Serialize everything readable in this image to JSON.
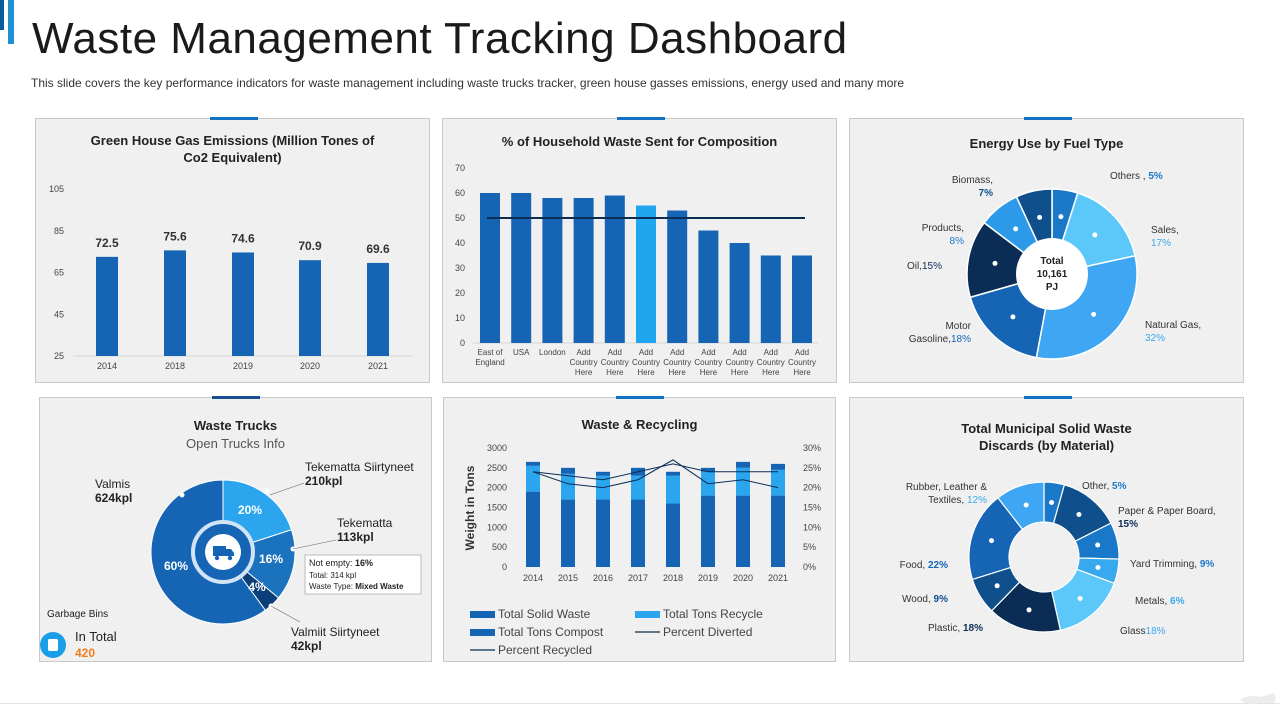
{
  "header": {
    "title": "Waste Management Tracking Dashboard",
    "subtitle": "This slide covers the key performance indicators for waste management including waste trucks tracker, green house gasses emissions, energy used and many more"
  },
  "colors": {
    "dark": "#0b2d55",
    "navy": "#0a3f7a",
    "mid": "#1565b4",
    "blue": "#1a78c9",
    "light": "#38a9ef",
    "sky": "#5cc8fa",
    "accent_orange": "#f07c1c"
  },
  "panels": {
    "ghg": {
      "title1": "Green House Gas Emissions (Million Tones of",
      "title2": "Co2 Equivalent)"
    },
    "household": {
      "title": "% of Household Waste Sent for Composition"
    },
    "energy": {
      "title": "Energy Use by Fuel Type",
      "center1": "Total",
      "center2": "10,161",
      "center3": "PJ"
    },
    "trucks": {
      "title": "Waste Trucks",
      "subtitle": "Open Trucks Info",
      "garbage_label": "Garbage Bins",
      "in_total_label": "In Total",
      "in_total_value": "420",
      "callout": {
        "line1_label": "Not empty: ",
        "line1_value": "16%",
        "line2": "Total: 314 kpl",
        "line3_label": "Waste Type: ",
        "line3_value": "Mixed Waste"
      }
    },
    "recycling": {
      "title": "Waste & Recycling"
    },
    "msw": {
      "title1": "Total Municipal Solid Waste",
      "title2": "Discards (by Material)"
    }
  },
  "chart_data": [
    {
      "id": "ghg",
      "type": "bar",
      "title": "Green House Gas Emissions (Million Tones of Co2 Equivalent)",
      "categories": [
        "2014",
        "2018",
        "2019",
        "2020",
        "2021"
      ],
      "values": [
        72.5,
        75.6,
        74.6,
        70.9,
        69.6
      ],
      "value_labels": [
        "72.5",
        "75.6",
        "74.6",
        "70.9",
        "69.6"
      ],
      "y_ticks": [
        "105",
        "85",
        "65",
        "45",
        "25"
      ],
      "ylim": [
        25,
        105
      ]
    },
    {
      "id": "household",
      "type": "bar",
      "title": "% of Household Waste Sent for Composition",
      "categories": [
        [
          "East of",
          "England"
        ],
        [
          "USA"
        ],
        [
          "London"
        ],
        [
          "Add",
          "Country",
          "Here"
        ],
        [
          "Add",
          "Country",
          "Here"
        ],
        [
          "Add",
          "Country",
          "Here"
        ],
        [
          "Add",
          "Country",
          "Here"
        ],
        [
          "Add",
          "Country",
          "Here"
        ],
        [
          "Add",
          "Country",
          "Here"
        ],
        [
          "Add",
          "Country",
          "Here"
        ],
        [
          "Add",
          "Country",
          "Here"
        ]
      ],
      "values": [
        60,
        60,
        58,
        58,
        59,
        55,
        53,
        45,
        40,
        35,
        35
      ],
      "highlight_index": 5,
      "target_line": 50,
      "y_ticks": [
        "70",
        "60",
        "50",
        "40",
        "30",
        "20",
        "10",
        "0"
      ],
      "ylim": [
        0,
        70
      ]
    },
    {
      "id": "energy",
      "type": "pie",
      "title": "Energy Use by Fuel Type",
      "total_label": "Total 10,161 PJ",
      "slices": [
        {
          "name": "Others",
          "value": 5,
          "label_name": "Others ,",
          "label_value": "5%",
          "color": "#1a78c9"
        },
        {
          "name": "Sales",
          "value": 17,
          "label_name": "Sales,",
          "label_value": "17%",
          "color": "#5cc8fa"
        },
        {
          "name": "Natural Gas",
          "value": 32,
          "label_name": "Natural Gas,",
          "label_value": "32%",
          "color": "#3ea6f2"
        },
        {
          "name": "Motor Gasoline",
          "value": 18,
          "label_name": "Motor",
          "label_name2": "Gasoline,",
          "label_value": "18%",
          "color": "#1565b4"
        },
        {
          "name": "Oil",
          "value": 15,
          "label_name": "Oil,",
          "label_value": "15%",
          "color": "#0b2d55"
        },
        {
          "name": "Products",
          "value": 8,
          "label_name": "Products,",
          "label_value": "8%",
          "color": "#2c9ae8"
        },
        {
          "name": "Biomass",
          "value": 7,
          "label_name": "Biomass,",
          "label_value": "7%",
          "color": "#0e4f8c"
        }
      ]
    },
    {
      "id": "trucks",
      "type": "pie",
      "title": "Waste Trucks",
      "slices": [
        {
          "name": "Valmis",
          "value": 60,
          "label": "60%",
          "kpl": "624kpl",
          "color": "#1565b4"
        },
        {
          "name": "Tekematta Siirtyneet",
          "value": 20,
          "label": "20%",
          "kpl": "210kpl",
          "color": "#2aa5ee"
        },
        {
          "name": "Tekematta",
          "value": 16,
          "label": "16%",
          "kpl": "113kpl",
          "color": "#1b73bd"
        },
        {
          "name": "Valmiit Siirtyneet",
          "value": 4,
          "label": "4%",
          "kpl": "42kpl",
          "color": "#0a3f7a"
        }
      ]
    },
    {
      "id": "recycling",
      "type": "bar",
      "title": "Waste & Recycling",
      "ylabel": "Weight in Tons",
      "categories": [
        "2014",
        "2015",
        "2016",
        "2017",
        "2018",
        "2019",
        "2020",
        "2021"
      ],
      "y_ticks": [
        "3000",
        "2500",
        "2000",
        "1500",
        "1000",
        "500",
        "0"
      ],
      "y2_ticks": [
        "30%",
        "25%",
        "20%",
        "15%",
        "10%",
        "5%",
        "0%"
      ],
      "ylim": [
        0,
        3000
      ],
      "y2lim": [
        0,
        30
      ],
      "series": [
        {
          "name": "Total Solid Waste",
          "values": [
            1900,
            1700,
            1700,
            1700,
            1600,
            1800,
            1800,
            1800
          ],
          "color": "#1565b4"
        },
        {
          "name": "Total Tons Recycle",
          "values": [
            650,
            650,
            600,
            600,
            700,
            600,
            700,
            650
          ],
          "color": "#2aa5ee"
        },
        {
          "name": "Total Tons Compost",
          "values": [
            100,
            150,
            100,
            200,
            100,
            100,
            150,
            150
          ],
          "color": "#1565b4"
        },
        {
          "name": "Percent Diverted",
          "values": [
            24,
            23,
            22,
            24,
            26,
            24,
            24,
            24
          ],
          "color": "#0b2d55"
        },
        {
          "name": "Percent Recycled",
          "values": [
            24,
            21,
            20,
            22,
            27,
            21,
            22,
            20
          ],
          "color": "#0b2d55"
        }
      ]
    },
    {
      "id": "msw",
      "type": "pie",
      "title": "Total Municipal Solid Waste Discards (by Material)",
      "slices": [
        {
          "name": "Other",
          "value": 5,
          "label_name": "Other,",
          "label_value": "5%",
          "color": "#1a78c9"
        },
        {
          "name": "Paper & Paper Board",
          "value": 15,
          "label_name": "Paper & Paper Board,",
          "label_value": "15%",
          "color": "#0e4f8c"
        },
        {
          "name": "Yard Trimming",
          "value": 9,
          "label_name": "Yard Trimming,",
          "label_value": "9%",
          "color": "#1a78c9"
        },
        {
          "name": "Metals",
          "value": 6,
          "label_name": "Metals,",
          "label_value": "6%",
          "color": "#38a9ef"
        },
        {
          "name": "Glass",
          "value": 18,
          "label_name": "Glass",
          "label_value": "18%",
          "color": "#5cc8fa"
        },
        {
          "name": "Plastic",
          "value": 18,
          "label_name": "Plastic,",
          "label_value": "18%",
          "color": "#0b2d55"
        },
        {
          "name": "Wood",
          "value": 9,
          "label_name": "Wood,",
          "label_value": "9%",
          "color": "#0e4f8c"
        },
        {
          "name": "Food",
          "value": 22,
          "label_name": "Food,",
          "label_value": "22%",
          "color": "#1565b4"
        },
        {
          "name": "Rubber, Leather & Textiles",
          "value": 12,
          "label_name": "Rubber, Leather &",
          "label_name2": "Textiles,",
          "label_value": "12%",
          "color": "#3ea6f2"
        }
      ]
    }
  ]
}
